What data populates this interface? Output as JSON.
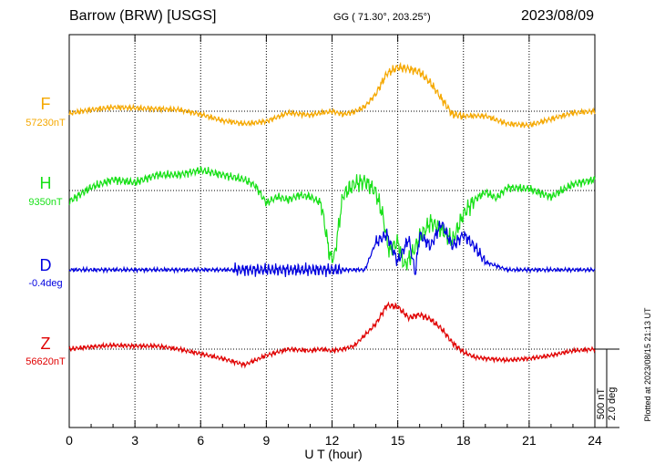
{
  "header": {
    "station": "Barrow (BRW)  [USGS]",
    "coords": "GG ( 71.30°, 203.25°)",
    "date": "2023/08/09"
  },
  "plotted_note": "Plotted at 2023/08/15 21:13 UT",
  "scale": {
    "line1": "500 nT",
    "line2": "2.0 deg"
  },
  "colors": {
    "F": "#f5a800",
    "H": "#18e018",
    "D": "#0000e0",
    "Z": "#e00000"
  },
  "chart_data": {
    "type": "line",
    "title": "Barrow (BRW)  [USGS]",
    "xlabel": "U T (hour)",
    "ylabel": "",
    "xlim": [
      0,
      24
    ],
    "xticks": [
      "0",
      "3",
      "6",
      "9",
      "12",
      "15",
      "18",
      "21",
      "24"
    ],
    "grid": true,
    "scale_bar": "500 nT / 2.0 deg",
    "series": [
      {
        "name": "F",
        "baseline": "57230nT",
        "x": [
          0,
          1,
          2,
          3,
          4,
          5,
          6,
          7,
          8,
          9,
          10,
          11,
          11.5,
          12,
          12.5,
          13,
          13.5,
          14,
          14.5,
          15,
          15.5,
          16,
          16.5,
          17,
          17.5,
          18,
          19,
          20,
          21,
          22,
          23,
          24
        ],
        "values": [
          -15,
          10,
          25,
          20,
          15,
          10,
          -20,
          -60,
          -80,
          -65,
          -10,
          -25,
          -10,
          0,
          -20,
          -5,
          30,
          110,
          240,
          280,
          270,
          250,
          180,
          80,
          -20,
          -30,
          -30,
          -80,
          -90,
          -50,
          -10,
          0
        ]
      },
      {
        "name": "H",
        "baseline": "9350nT",
        "x": [
          0,
          1,
          2,
          3,
          4,
          5,
          6,
          7,
          8,
          8.5,
          9,
          9.5,
          10,
          10.5,
          11,
          11.5,
          11.9,
          12.1,
          12.5,
          13,
          13.5,
          14,
          14.3,
          14.6,
          15,
          15.3,
          15.6,
          16,
          16.5,
          17,
          17.5,
          18,
          18.5,
          19,
          19.5,
          20,
          21,
          22,
          23,
          24
        ],
        "values": [
          -70,
          20,
          70,
          50,
          100,
          100,
          130,
          100,
          70,
          30,
          -80,
          -40,
          -60,
          -30,
          -40,
          -80,
          -420,
          -430,
          -30,
          40,
          60,
          -10,
          -150,
          -380,
          -330,
          -480,
          -420,
          -300,
          -200,
          -250,
          -320,
          -150,
          -60,
          -10,
          -50,
          20,
          10,
          -40,
          40,
          70
        ]
      },
      {
        "name": "D",
        "baseline": "-0.4deg",
        "x": [
          0,
          1,
          2,
          3,
          4,
          5,
          6,
          7,
          7.5,
          8,
          8.5,
          9,
          9.5,
          10,
          11,
          11.5,
          12,
          12.2,
          12.5,
          13,
          13.5,
          14,
          14.5,
          15,
          15.5,
          15.8,
          16,
          16.5,
          17,
          17.5,
          18,
          18.5,
          19,
          19.5,
          20,
          21,
          22,
          23,
          24
        ],
        "values": [
          0,
          0,
          0,
          0,
          0,
          0,
          0,
          0,
          0,
          0,
          0,
          0,
          0,
          0,
          0,
          0,
          0,
          0,
          0,
          0,
          0,
          0.7,
          0.9,
          0.2,
          0.8,
          -0.1,
          0.9,
          0.6,
          1.2,
          0.6,
          0.9,
          0.6,
          0.2,
          0.1,
          0,
          0,
          0,
          0,
          0
        ]
      },
      {
        "name": "Z",
        "baseline": "56620nT",
        "x": [
          0,
          1,
          2,
          3,
          4,
          5,
          6,
          7,
          8,
          9,
          10,
          11,
          11.5,
          12,
          12.5,
          13,
          14,
          14.5,
          15,
          15.5,
          16,
          16.5,
          17,
          17.5,
          18,
          18.5,
          19,
          20,
          21,
          22,
          23,
          24
        ],
        "values": [
          0,
          15,
          25,
          20,
          20,
          0,
          -30,
          -60,
          -100,
          -40,
          0,
          -10,
          0,
          -10,
          0,
          20,
          160,
          280,
          270,
          200,
          220,
          190,
          130,
          40,
          -20,
          -50,
          -60,
          -70,
          -60,
          -40,
          -10,
          0
        ]
      }
    ]
  }
}
